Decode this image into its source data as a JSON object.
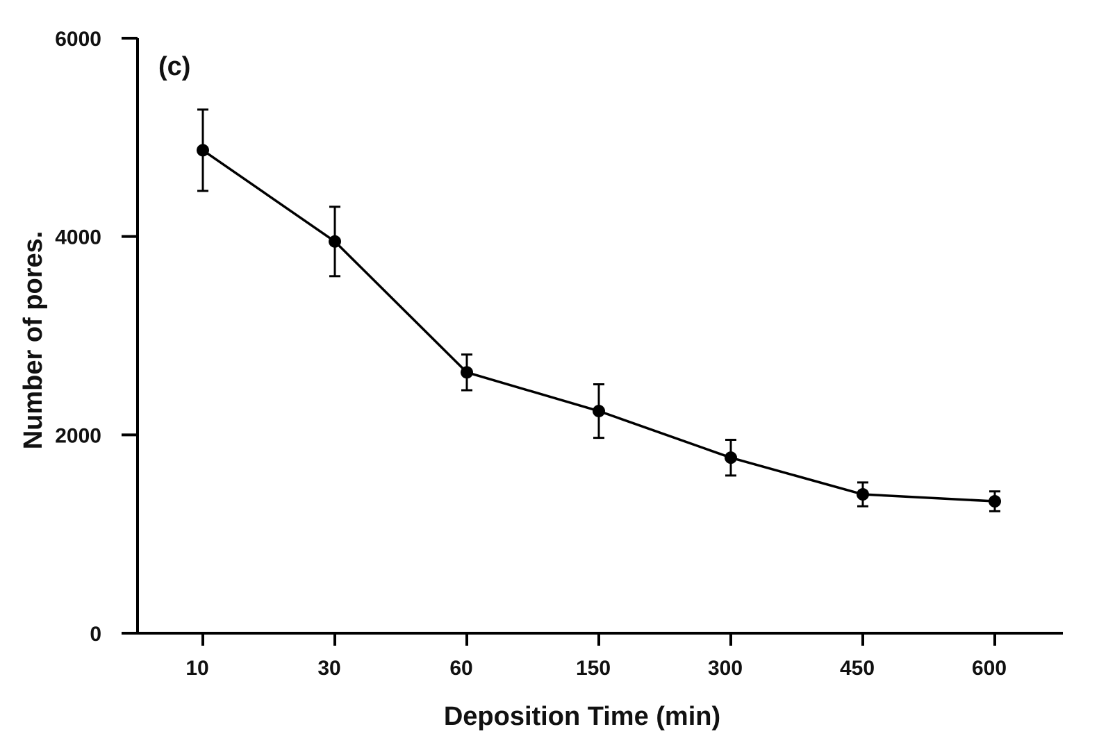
{
  "chart_data": {
    "type": "line",
    "panel_label": "(c)",
    "title": "",
    "xlabel": "Deposition Time (min)",
    "ylabel": "Number of pores.",
    "categories": [
      "10",
      "30",
      "60",
      "150",
      "300",
      "450",
      "600"
    ],
    "series": [
      {
        "name": "Number of pores",
        "values": [
          4870,
          3950,
          2630,
          2240,
          1770,
          1400,
          1330
        ],
        "errors": [
          410,
          350,
          180,
          270,
          180,
          120,
          100
        ]
      }
    ],
    "ylim": [
      0,
      6000
    ],
    "yticks": [
      0,
      2000,
      4000,
      6000
    ],
    "ytick_labels": [
      "0",
      "2000",
      "4000",
      "6000"
    ],
    "grid": false,
    "colors": {
      "line": "#000000",
      "axis": "#000000",
      "text": "#111111"
    }
  }
}
